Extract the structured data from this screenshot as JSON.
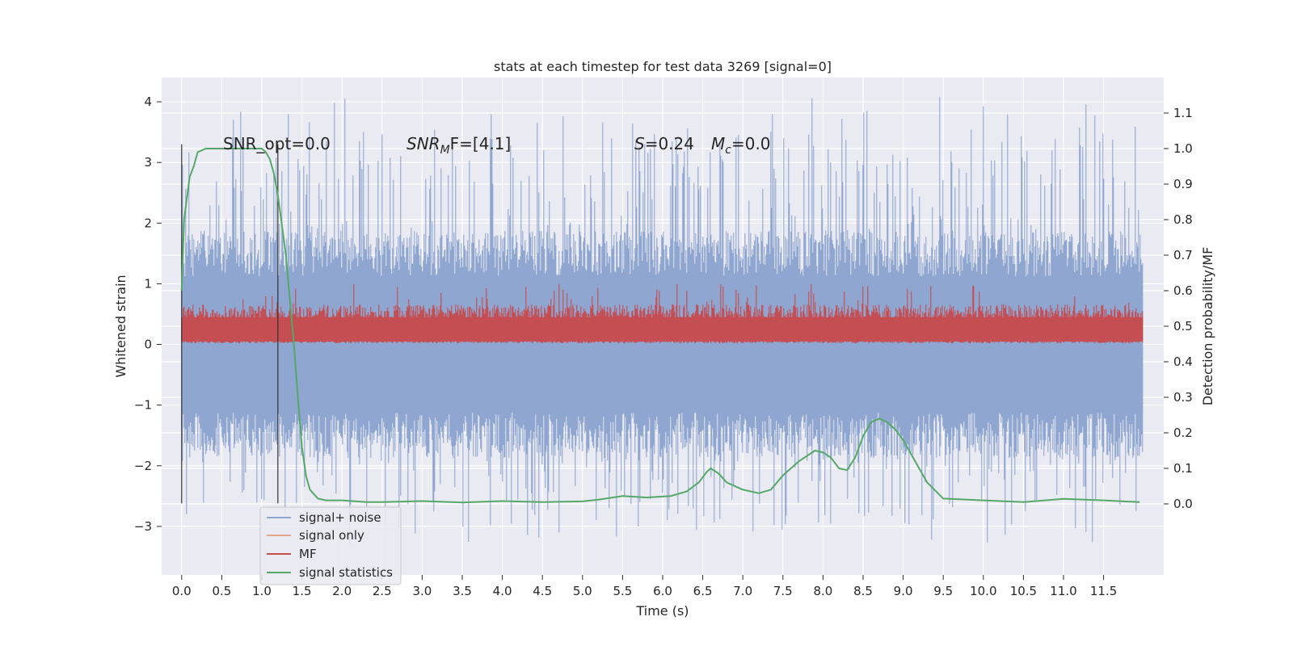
{
  "chart_data": {
    "type": "line",
    "title": "stats at each timestep for test data 3269 [signal=0]",
    "xlabel": "Time (s)",
    "ylabel_left": "Whitened strain",
    "ylabel_right": "Detection probability/MF",
    "xlim": [
      -0.25,
      12.25
    ],
    "ylim_left": [
      -3.8,
      4.4
    ],
    "ylim_right": [
      -0.2,
      1.2
    ],
    "xticks": [
      "0.0",
      "0.5",
      "1.0",
      "1.5",
      "2.0",
      "2.5",
      "3.0",
      "3.5",
      "4.0",
      "4.5",
      "5.0",
      "5.5",
      "6.0",
      "6.5",
      "7.0",
      "7.5",
      "8.0",
      "8.5",
      "9.0",
      "9.5",
      "10.0",
      "10.5",
      "11.0",
      "11.5"
    ],
    "yticks_left": [
      "4",
      "3",
      "2",
      "1",
      "0",
      "−1",
      "−2",
      "−3"
    ],
    "yticks_right": [
      "1.1",
      "1.0",
      "0.9",
      "0.8",
      "0.7",
      "0.6",
      "0.5",
      "0.4",
      "0.3",
      "0.2",
      "0.1",
      "0.0"
    ],
    "grid": true,
    "legend_placement": "lower-left",
    "annotations": {
      "snr_opt": "SNR_opt=0.0",
      "snr_mf_main": "SNR",
      "snr_mf_sub": "M",
      "snr_mf_tail": "F=[4.1]",
      "s_label": "S",
      "s_value": "=0.24",
      "mc_label": "M",
      "mc_sub": "c",
      "mc_value": "=0.0"
    },
    "vertical_lines_x": [
      0.0,
      1.2
    ],
    "series": [
      {
        "name": "signal+ noise",
        "axis": "left",
        "color": "#8fa6d0",
        "envelope": {
          "x_range": [
            0.0,
            11.99
          ],
          "typical_upper": 1.5,
          "typical_lower": -1.5,
          "max_peak": 4.1,
          "min_peak": -3.3
        }
      },
      {
        "name": "signal only",
        "axis": "left",
        "color": "#e4a58a",
        "values": []
      },
      {
        "name": "MF",
        "axis": "left",
        "color": "#c44e52",
        "envelope": {
          "x_range": [
            0.0,
            11.99
          ],
          "typical_upper": 0.6,
          "typical_lower": 0.02,
          "max_peak": 1.0,
          "min_peak": 0.0
        }
      },
      {
        "name": "signal statistics",
        "axis": "right",
        "color": "#55a868",
        "x": [
          0.0,
          0.03,
          0.1,
          0.15,
          0.2,
          0.3,
          0.5,
          0.7,
          0.9,
          1.0,
          1.05,
          1.1,
          1.15,
          1.2,
          1.3,
          1.4,
          1.45,
          1.5,
          1.55,
          1.6,
          1.7,
          1.8,
          2.0,
          2.3,
          2.5,
          3.0,
          3.5,
          4.0,
          4.5,
          5.0,
          5.2,
          5.5,
          5.8,
          6.1,
          6.3,
          6.45,
          6.55,
          6.6,
          6.7,
          6.8,
          7.0,
          7.2,
          7.35,
          7.5,
          7.7,
          7.9,
          8.0,
          8.1,
          8.2,
          8.3,
          8.4,
          8.5,
          8.6,
          8.7,
          8.8,
          8.9,
          9.0,
          9.1,
          9.2,
          9.3,
          9.5,
          10.0,
          10.5,
          11.0,
          11.5,
          11.95
        ],
        "y": [
          0.6,
          0.8,
          0.92,
          0.95,
          0.99,
          1.0,
          1.0,
          1.0,
          1.0,
          1.0,
          0.99,
          0.97,
          0.93,
          0.87,
          0.7,
          0.45,
          0.3,
          0.16,
          0.08,
          0.04,
          0.015,
          0.01,
          0.01,
          0.005,
          0.005,
          0.008,
          0.004,
          0.008,
          0.005,
          0.007,
          0.012,
          0.022,
          0.018,
          0.022,
          0.035,
          0.06,
          0.09,
          0.1,
          0.085,
          0.06,
          0.04,
          0.03,
          0.04,
          0.08,
          0.12,
          0.15,
          0.145,
          0.13,
          0.1,
          0.095,
          0.13,
          0.19,
          0.23,
          0.24,
          0.23,
          0.21,
          0.18,
          0.14,
          0.1,
          0.06,
          0.015,
          0.01,
          0.005,
          0.014,
          0.01,
          0.005
        ]
      }
    ]
  }
}
